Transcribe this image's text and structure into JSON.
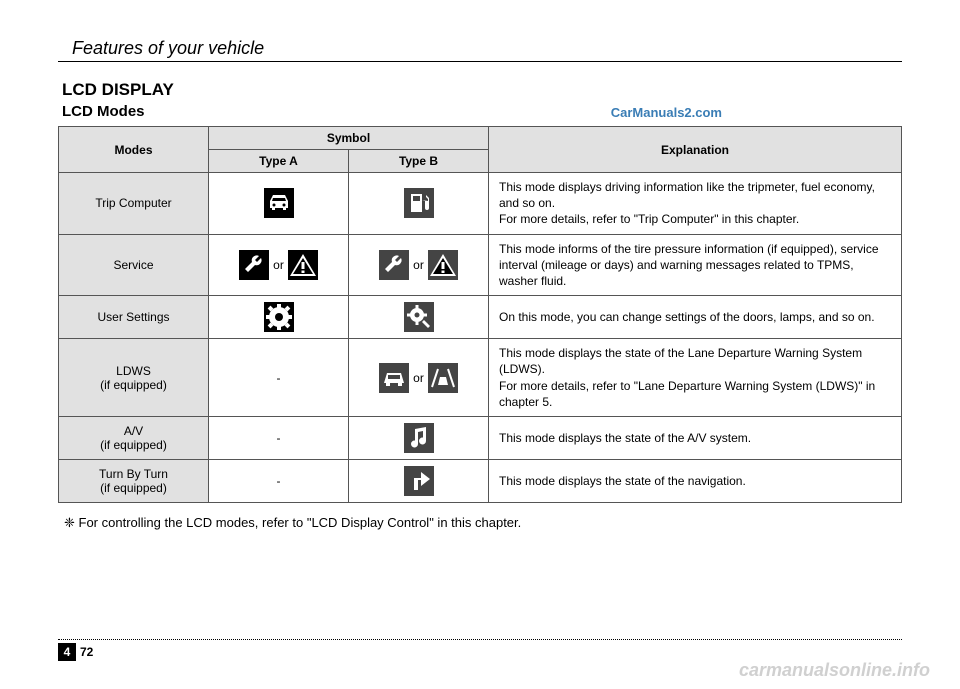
{
  "header": {
    "title": "Features of your vehicle"
  },
  "section": {
    "title": "LCD DISPLAY",
    "subtitle": "LCD Modes"
  },
  "watermarks": {
    "top": "CarManuals2.com",
    "bottom": "carmanualsonline.info"
  },
  "table": {
    "cols": {
      "mode_width": 150,
      "sym_width": 140
    },
    "headers": {
      "modes": "Modes",
      "symbol": "Symbol",
      "explanation": "Explanation",
      "type_a": "Type A",
      "type_b": "Type B"
    },
    "or_label": "or",
    "rows": [
      {
        "mode": "Trip Computer",
        "a": {
          "icons": [
            "car-front-icon"
          ],
          "text": ""
        },
        "b": {
          "icons": [
            "fuel-pump-icon"
          ],
          "text": "",
          "dark": true
        },
        "exp": "This mode displays driving information like the tripmeter, fuel economy, and so on.\nFor more details, refer to \"Trip Computer\" in this chapter."
      },
      {
        "mode": "Service",
        "a": {
          "icons": [
            "wrench-icon",
            "warning-triangle-icon"
          ],
          "text": "or"
        },
        "b": {
          "icons": [
            "wrench-icon",
            "warning-triangle-icon"
          ],
          "text": "or",
          "dark": true
        },
        "exp": "This mode informs of the tire pressure information (if equipped), service interval (mileage or days) and warning messages related to TPMS, washer fluid."
      },
      {
        "mode": "User Settings",
        "a": {
          "icons": [
            "gear-icon"
          ],
          "text": ""
        },
        "b": {
          "icons": [
            "gear-small-icon"
          ],
          "text": "",
          "dark": true
        },
        "exp": "On this mode, you can change settings of the doors, lamps, and so on."
      },
      {
        "mode": "LDWS\n(if equipped)",
        "a": {
          "icons": [],
          "text": "-"
        },
        "b": {
          "icons": [
            "car-lane-icon",
            "lane-warn-icon"
          ],
          "text": "or",
          "dark": true
        },
        "exp": "This mode displays the state of the Lane Departure Warning System (LDWS).\nFor more details, refer to \"Lane Departure Warning System (LDWS)\" in chapter 5."
      },
      {
        "mode": "A/V\n(if equipped)",
        "a": {
          "icons": [],
          "text": "-"
        },
        "b": {
          "icons": [
            "music-note-icon"
          ],
          "text": "",
          "dark": true
        },
        "exp": "This mode displays the state of the A/V system."
      },
      {
        "mode": "Turn By Turn\n(if equipped)",
        "a": {
          "icons": [],
          "text": "-"
        },
        "b": {
          "icons": [
            "turn-arrow-icon"
          ],
          "text": "",
          "dark": true
        },
        "exp": "This mode displays the state of the navigation."
      }
    ]
  },
  "footnote": "❈ For controlling the LCD modes, refer to \"LCD Display Control\" in this chapter.",
  "footer": {
    "chapter": "4",
    "page": "72"
  },
  "colors": {
    "header_bg": "#e1e1e1",
    "border": "#555555",
    "text": "#000000",
    "link": "#3a7db5",
    "watermark_grey": "#d0d0d0",
    "icon_bg": "#000000",
    "icon_bg_dark": "#444444",
    "icon_fg": "#ffffff"
  }
}
